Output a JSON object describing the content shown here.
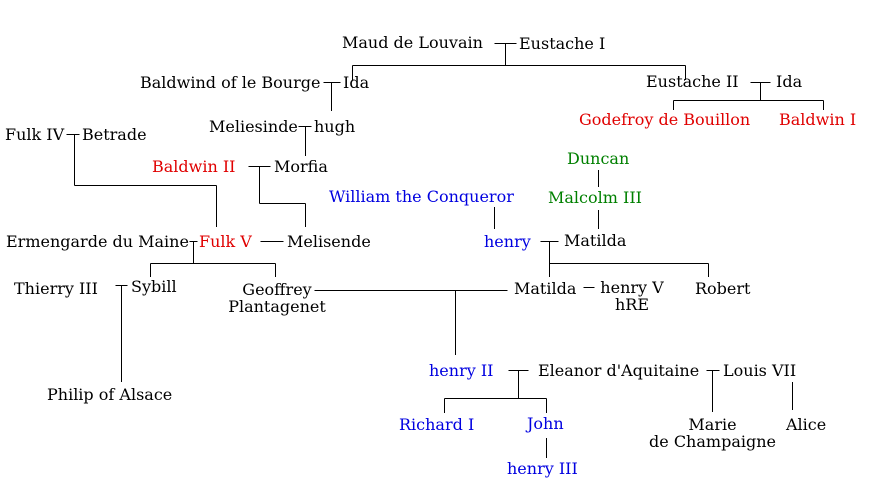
{
  "colors": {
    "default": "#000000",
    "crusader_king": "#e00000",
    "english_king": "#0000e0",
    "scottish_king": "#008000"
  },
  "people": {
    "maud_de_louvain": "Maud de Louvain",
    "eustache_i": "Eustache I",
    "baldwind_of_le_bourge": "Baldwind of le Bourge",
    "ida_1": "Ida",
    "eustache_ii": "Eustache II",
    "ida_2": "Ida",
    "godefroy_de_bouillon": "Godefroy de Bouillon",
    "baldwin_i": "Baldwin I",
    "meliesinde": "Meliesinde",
    "hugh": "hugh",
    "fulk_iv": "Fulk IV",
    "betrade": "Betrade",
    "baldwin_ii": "Baldwin II",
    "morfia": "Morfia",
    "duncan": "Duncan",
    "william_the_conqueror": "William the Conqueror",
    "malcolm_iii": "Malcolm III",
    "ermengarde_du_maine": "Ermengarde du Maine",
    "fulk_v": "Fulk V",
    "melisende": "Melisende",
    "henry": "henry",
    "matilda_1": "Matilda",
    "thierry_iii": "Thierry III",
    "sybill": "Sybill",
    "geoffrey_line1": "Geoffrey",
    "geoffrey_line2": "Plantagenet",
    "matilda_2": "Matilda",
    "henry_v_line1": "henry V",
    "henry_v_line2": "hRE",
    "robert": "Robert",
    "philip_of_alsace": "Philip of Alsace",
    "henry_ii": "henry II",
    "eleanor_d_aquitaine": "Eleanor d'Aquitaine",
    "louis_vii": "Louis VII",
    "richard_i": "Richard I",
    "john": "John",
    "marie_line1": "Marie",
    "marie_line2": "de Champaigne",
    "alice": "Alice",
    "henry_iii": "henry III"
  }
}
